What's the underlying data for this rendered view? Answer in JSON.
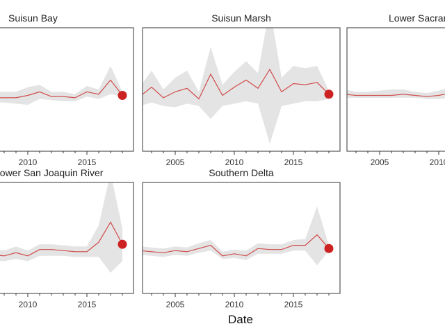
{
  "chart_data": {
    "type": "line",
    "xlabel": "Date",
    "xlim": [
      2001.2,
      2019.8
    ],
    "x_ticks": [
      2005,
      2010,
      2015
    ],
    "x_tick_labels": [
      "2005",
      "2010",
      "2015"
    ],
    "ylim": [
      0,
      10
    ],
    "colors": {
      "line": "#d04a4a",
      "marker": "#cc2222",
      "band": "#e4e4e4",
      "frame": "#333333"
    },
    "panels": [
      {
        "title": "Suisun Bay",
        "x": [
          2001,
          2002,
          2003,
          2004,
          2005,
          2006,
          2007,
          2008,
          2009,
          2010,
          2011,
          2012,
          2013,
          2014,
          2015,
          2016,
          2017,
          2018
        ],
        "mean": [
          4.4,
          4.4,
          4.2,
          4.2,
          4.4,
          4.3,
          4.3,
          4.3,
          4.3,
          4.5,
          4.8,
          4.4,
          4.4,
          4.3,
          4.8,
          4.6,
          5.8,
          4.5
        ],
        "lower": [
          3.8,
          3.8,
          3.8,
          3.8,
          3.9,
          3.9,
          3.9,
          3.9,
          3.8,
          3.7,
          4.2,
          4.1,
          4.0,
          4.0,
          4.4,
          4.2,
          4.6,
          4.4
        ],
        "upper": [
          5.0,
          5.0,
          4.8,
          4.8,
          4.9,
          4.8,
          4.8,
          4.8,
          4.8,
          5.2,
          5.4,
          4.8,
          4.8,
          4.6,
          5.3,
          5.0,
          7.0,
          4.8
        ],
        "last": 4.5
      },
      {
        "title": "Suisun Marsh",
        "x": [
          2002,
          2003,
          2004,
          2005,
          2006,
          2007,
          2008,
          2009,
          2010,
          2011,
          2012,
          2013,
          2014,
          2015,
          2016,
          2017,
          2018
        ],
        "mean": [
          4.4,
          5.2,
          4.3,
          4.8,
          5.1,
          4.2,
          6.3,
          4.5,
          5.2,
          5.8,
          5.1,
          6.7,
          4.8,
          5.5,
          5.4,
          5.6,
          4.6
        ],
        "lower": [
          3.6,
          3.9,
          3.6,
          3.5,
          3.8,
          3.6,
          2.5,
          3.6,
          3.8,
          4.0,
          3.8,
          0.4,
          3.6,
          3.8,
          4.0,
          4.0,
          4.2
        ],
        "upper": [
          5.2,
          6.6,
          5.0,
          6.0,
          6.6,
          4.8,
          8.6,
          5.4,
          6.5,
          7.4,
          6.4,
          12.0,
          6.0,
          7.0,
          6.8,
          7.0,
          4.9
        ],
        "last": 4.6
      },
      {
        "title": "Lower Sacramento River",
        "x": [
          2001,
          2002,
          2003,
          2004,
          2005,
          2006,
          2007,
          2008,
          2009,
          2010,
          2011,
          2012,
          2013,
          2014,
          2015,
          2016,
          2017,
          2018
        ],
        "mean": [
          4.8,
          4.6,
          4.5,
          4.5,
          4.5,
          4.5,
          4.6,
          4.5,
          4.4,
          4.5,
          4.7,
          4.9,
          5.3,
          4.9,
          4.8,
          4.8,
          4.8,
          4.8
        ],
        "lower": [
          4.4,
          4.3,
          4.3,
          4.3,
          4.3,
          4.3,
          4.3,
          4.3,
          4.2,
          4.2,
          4.3,
          4.5,
          4.8,
          4.5,
          4.5,
          4.5,
          4.5,
          4.5
        ],
        "upper": [
          5.2,
          5.0,
          4.8,
          4.8,
          4.9,
          5.0,
          5.0,
          4.8,
          4.7,
          4.9,
          5.2,
          5.4,
          5.8,
          5.3,
          5.1,
          5.1,
          5.1,
          5.1
        ],
        "last": 4.8
      },
      {
        "title": "Lower San Joaquin River",
        "x": [
          2001,
          2002,
          2003,
          2004,
          2005,
          2006,
          2007,
          2008,
          2009,
          2010,
          2011,
          2012,
          2013,
          2014,
          2015,
          2016,
          2017,
          2018
        ],
        "mean": [
          3.5,
          3.6,
          3.3,
          3.6,
          3.4,
          3.6,
          3.4,
          3.3,
          3.6,
          3.3,
          3.9,
          3.9,
          3.8,
          3.7,
          3.7,
          4.6,
          6.5,
          4.4
        ],
        "lower": [
          3.0,
          3.0,
          2.8,
          3.1,
          2.9,
          3.0,
          2.9,
          2.8,
          3.0,
          2.8,
          3.3,
          3.3,
          3.3,
          3.2,
          3.2,
          3.2,
          1.7,
          2.8
        ],
        "upper": [
          4.0,
          4.1,
          3.8,
          4.1,
          3.9,
          4.2,
          3.9,
          3.8,
          4.2,
          3.8,
          4.4,
          4.4,
          4.3,
          4.2,
          4.2,
          6.2,
          11.2,
          5.9
        ],
        "last": 4.4
      },
      {
        "title": "Southern Delta",
        "x": [
          2002,
          2003,
          2004,
          2005,
          2006,
          2007,
          2008,
          2009,
          2010,
          2011,
          2012,
          2013,
          2014,
          2015,
          2016,
          2017,
          2018
        ],
        "mean": [
          3.8,
          3.7,
          3.6,
          3.8,
          3.7,
          4.0,
          4.3,
          3.3,
          3.5,
          3.3,
          4.0,
          3.9,
          3.9,
          4.3,
          4.3,
          5.3,
          4.0
        ],
        "lower": [
          3.4,
          3.3,
          3.2,
          3.4,
          3.3,
          3.6,
          3.8,
          3.0,
          3.1,
          2.9,
          3.5,
          3.5,
          3.5,
          3.8,
          3.8,
          2.4,
          3.8
        ],
        "upper": [
          4.2,
          4.1,
          4.0,
          4.2,
          4.1,
          4.5,
          4.8,
          3.7,
          3.9,
          3.8,
          4.5,
          4.4,
          4.4,
          4.8,
          4.9,
          8.0,
          4.3
        ],
        "last": 4.0
      }
    ]
  }
}
